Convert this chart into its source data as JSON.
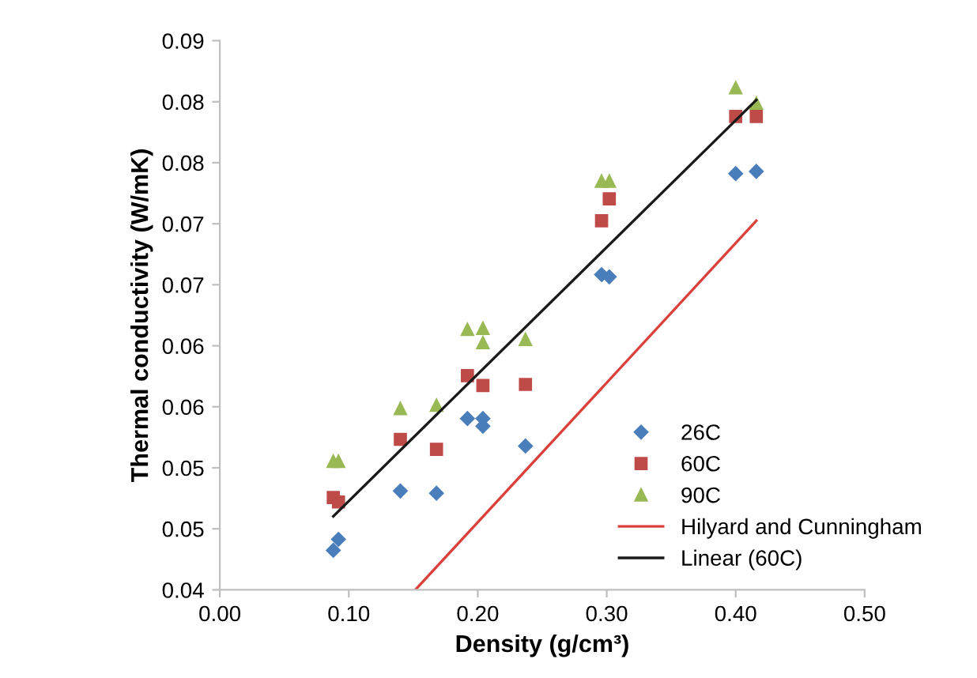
{
  "chart_data": {
    "type": "scatter",
    "xlabel": "Density (g/cm³)",
    "ylabel": "Thermal conductivity (W/mK)",
    "x": [
      0.088,
      0.092,
      0.14,
      0.168,
      0.192,
      0.204,
      0.204,
      0.237,
      0.296,
      0.302,
      0.4,
      0.416
    ],
    "series": [
      {
        "name": "26C",
        "color": "#4a7ebb",
        "marker": "diamond",
        "values": [
          0.0436,
          0.0446,
          0.049,
          0.0488,
          0.0556,
          0.0556,
          0.0549,
          0.0531,
          0.0687,
          0.0685,
          0.0779,
          0.0781
        ]
      },
      {
        "name": "60C",
        "color": "#be4b48",
        "marker": "square",
        "values": [
          0.0484,
          0.048,
          0.0537,
          0.0528,
          0.0595,
          0.0586,
          null,
          0.0587,
          0.0736,
          0.0756,
          0.0831,
          0.0831
        ]
      },
      {
        "name": "90C",
        "color": "#98b954",
        "marker": "triangle",
        "values": [
          0.0517,
          0.0517,
          0.0565,
          0.0568,
          0.0637,
          0.0638,
          0.0625,
          0.0628,
          0.0772,
          0.0772,
          0.0857,
          0.0843
        ]
      },
      {
        "name": "Hilyard and Cunningham",
        "type": "line",
        "color": "#d9413a",
        "marker": "none",
        "x": [
          0.1516,
          0.416
        ],
        "values": [
          0.04,
          0.0736
        ]
      },
      {
        "name": "Linear (60C)",
        "type": "line",
        "color": "#1a1a1a",
        "marker": "none",
        "x": [
          0.088,
          0.416
        ],
        "values": [
          0.0467,
          0.0846
        ]
      }
    ],
    "xlim": [
      0,
      0.5
    ],
    "xticks": [
      {
        "value": 0,
        "label": "0.00"
      },
      {
        "value": 0.1,
        "label": "0.10"
      },
      {
        "value": 0.2,
        "label": "0.20"
      },
      {
        "value": 0.3,
        "label": "0.30"
      },
      {
        "value": 0.4,
        "label": "0.40"
      },
      {
        "value": 0.5,
        "label": "0.50"
      }
    ],
    "ylim": [
      0.04,
      0.09
    ],
    "yticks": [
      0.04,
      {
        "value": 0.04556,
        "label": "0.05"
      },
      {
        "value": 0.05111,
        "label": "0.05"
      },
      {
        "value": 0.05667,
        "label": "0.06"
      },
      {
        "value": 0.06222,
        "label": "0.06"
      },
      {
        "value": 0.06778,
        "label": "0.07"
      },
      {
        "value": 0.07333,
        "label": "0.07"
      },
      {
        "value": 0.07889,
        "label": "0.08"
      },
      {
        "value": 0.08444,
        "label": "0.08"
      },
      0.09
    ],
    "legend": "bottom right",
    "grid": false
  }
}
